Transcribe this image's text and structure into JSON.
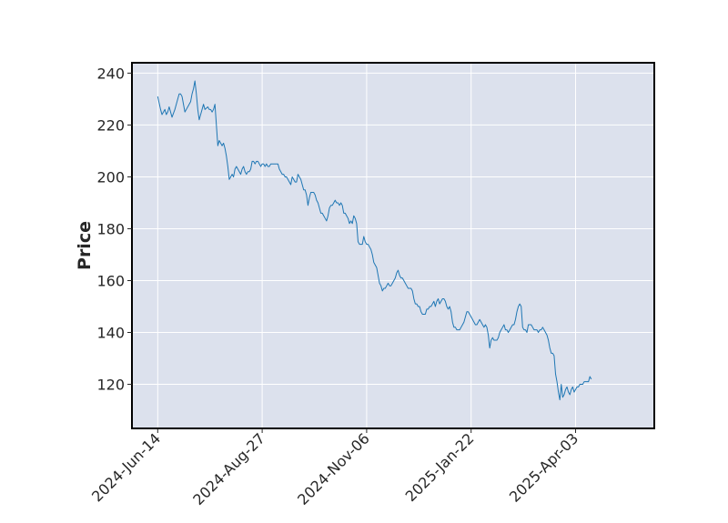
{
  "chart_data": {
    "type": "line",
    "title": "",
    "xlabel": "",
    "ylabel": "Price",
    "ylim": [
      103,
      244
    ],
    "yticks": [
      120,
      140,
      160,
      180,
      200,
      220,
      240
    ],
    "xticks": [
      "2024-Jun-14",
      "2024-Aug-27",
      "2024-Nov-06",
      "2025-Jan-22",
      "2025-Apr-03"
    ],
    "grid": true,
    "background_color": "#dce1ed",
    "line_color": "#1f77b4",
    "x_range": [
      -18,
      347
    ],
    "series": [
      {
        "points": [
          [
            0,
            231
          ],
          [
            2,
            226
          ],
          [
            3,
            224
          ],
          [
            5,
            226
          ],
          [
            6,
            224
          ],
          [
            7,
            225
          ],
          [
            8,
            227
          ],
          [
            9,
            225
          ],
          [
            10,
            223
          ],
          [
            12,
            226
          ],
          [
            14,
            230
          ],
          [
            15,
            232
          ],
          [
            16,
            232
          ],
          [
            17,
            231
          ],
          [
            18,
            228
          ],
          [
            19,
            225
          ],
          [
            20,
            226
          ],
          [
            21,
            227
          ],
          [
            23,
            229
          ],
          [
            24,
            232
          ],
          [
            25,
            234
          ],
          [
            26,
            237
          ],
          [
            27,
            232
          ],
          [
            28,
            226
          ],
          [
            29,
            222
          ],
          [
            30,
            224
          ],
          [
            31,
            226
          ],
          [
            32,
            228
          ],
          [
            33,
            226
          ],
          [
            35,
            227
          ],
          [
            36,
            226
          ],
          [
            37,
            226
          ],
          [
            38,
            225
          ],
          [
            39,
            226
          ],
          [
            40,
            228
          ],
          [
            41,
            220
          ],
          [
            42,
            212
          ],
          [
            43,
            214
          ],
          [
            44,
            213
          ],
          [
            45,
            212
          ],
          [
            46,
            213
          ],
          [
            47,
            211
          ],
          [
            48,
            208
          ],
          [
            49,
            204
          ],
          [
            50,
            199
          ],
          [
            51,
            200
          ],
          [
            52,
            201
          ],
          [
            53,
            200
          ],
          [
            54,
            203
          ],
          [
            55,
            204
          ],
          [
            56,
            203
          ],
          [
            57,
            202
          ],
          [
            58,
            201
          ],
          [
            59,
            203
          ],
          [
            60,
            204
          ],
          [
            61,
            202
          ],
          [
            62,
            201
          ],
          [
            63,
            202
          ],
          [
            64,
            202
          ],
          [
            65,
            203
          ],
          [
            66,
            206
          ],
          [
            67,
            206
          ],
          [
            68,
            205
          ],
          [
            69,
            206
          ],
          [
            70,
            206
          ],
          [
            71,
            205
          ],
          [
            72,
            204
          ],
          [
            73,
            205
          ],
          [
            74,
            205
          ],
          [
            75,
            204
          ],
          [
            76,
            205
          ],
          [
            77,
            204
          ],
          [
            78,
            204
          ],
          [
            79,
            205
          ],
          [
            80,
            205
          ],
          [
            82,
            205
          ],
          [
            84,
            205
          ],
          [
            85,
            203
          ],
          [
            86,
            202
          ],
          [
            87,
            201
          ],
          [
            88,
            201
          ],
          [
            89,
            200
          ],
          [
            90,
            200
          ],
          [
            91,
            199
          ],
          [
            92,
            198
          ],
          [
            93,
            197
          ],
          [
            94,
            200
          ],
          [
            95,
            199
          ],
          [
            96,
            198
          ],
          [
            97,
            198
          ],
          [
            98,
            201
          ],
          [
            99,
            200
          ],
          [
            100,
            199
          ],
          [
            101,
            197
          ],
          [
            102,
            195
          ],
          [
            103,
            195
          ],
          [
            104,
            193
          ],
          [
            105,
            189
          ],
          [
            106,
            192
          ],
          [
            107,
            194
          ],
          [
            108,
            194
          ],
          [
            109,
            194
          ],
          [
            110,
            193
          ],
          [
            111,
            191
          ],
          [
            112,
            190
          ],
          [
            113,
            188
          ],
          [
            114,
            186
          ],
          [
            115,
            186
          ],
          [
            116,
            185
          ],
          [
            117,
            184
          ],
          [
            118,
            183
          ],
          [
            119,
            185
          ],
          [
            120,
            188
          ],
          [
            121,
            189
          ],
          [
            122,
            189
          ],
          [
            123,
            190
          ],
          [
            124,
            191
          ],
          [
            125,
            190
          ],
          [
            126,
            190
          ],
          [
            127,
            189
          ],
          [
            128,
            190
          ],
          [
            129,
            189
          ],
          [
            130,
            186
          ],
          [
            131,
            186
          ],
          [
            132,
            185
          ],
          [
            133,
            184
          ],
          [
            134,
            182
          ],
          [
            135,
            183
          ],
          [
            136,
            182
          ],
          [
            137,
            185
          ],
          [
            138,
            184
          ],
          [
            139,
            182
          ],
          [
            140,
            175
          ],
          [
            141,
            174
          ],
          [
            142,
            174
          ],
          [
            143,
            174
          ],
          [
            144,
            177
          ],
          [
            145,
            175
          ],
          [
            146,
            174
          ],
          [
            147,
            174
          ],
          [
            148,
            173
          ],
          [
            149,
            172
          ],
          [
            150,
            170
          ],
          [
            151,
            167
          ],
          [
            152,
            166
          ],
          [
            153,
            165
          ],
          [
            154,
            162
          ],
          [
            155,
            159
          ],
          [
            156,
            158
          ],
          [
            157,
            156
          ],
          [
            158,
            157
          ],
          [
            159,
            157
          ],
          [
            160,
            158
          ],
          [
            161,
            159
          ],
          [
            162,
            158
          ],
          [
            163,
            158
          ],
          [
            164,
            159
          ],
          [
            165,
            160
          ],
          [
            166,
            161
          ],
          [
            167,
            163
          ],
          [
            168,
            164
          ],
          [
            169,
            162
          ],
          [
            170,
            161
          ],
          [
            171,
            161
          ],
          [
            172,
            160
          ],
          [
            173,
            159
          ],
          [
            174,
            158
          ],
          [
            175,
            157
          ],
          [
            176,
            157
          ],
          [
            177,
            157
          ],
          [
            178,
            156
          ],
          [
            179,
            153
          ],
          [
            180,
            151
          ],
          [
            181,
            151
          ],
          [
            182,
            150
          ],
          [
            183,
            150
          ],
          [
            184,
            148
          ],
          [
            185,
            147
          ],
          [
            186,
            147
          ],
          [
            187,
            147
          ],
          [
            188,
            149
          ],
          [
            189,
            149
          ],
          [
            190,
            150
          ],
          [
            191,
            150
          ],
          [
            192,
            151
          ],
          [
            193,
            152
          ],
          [
            194,
            150
          ],
          [
            195,
            152
          ],
          [
            196,
            153
          ],
          [
            197,
            151
          ],
          [
            198,
            152
          ],
          [
            199,
            153
          ],
          [
            200,
            153
          ],
          [
            201,
            152
          ],
          [
            202,
            150
          ],
          [
            203,
            149
          ],
          [
            204,
            150
          ],
          [
            205,
            148
          ],
          [
            206,
            144
          ],
          [
            207,
            142
          ],
          [
            208,
            142
          ],
          [
            209,
            141
          ],
          [
            210,
            141
          ],
          [
            211,
            141
          ],
          [
            212,
            142
          ],
          [
            213,
            143
          ],
          [
            214,
            144
          ],
          [
            215,
            146
          ],
          [
            216,
            148
          ],
          [
            217,
            148
          ],
          [
            218,
            147
          ],
          [
            219,
            146
          ],
          [
            220,
            145
          ],
          [
            221,
            144
          ],
          [
            222,
            143
          ],
          [
            223,
            143
          ],
          [
            224,
            144
          ],
          [
            225,
            145
          ],
          [
            226,
            144
          ],
          [
            227,
            143
          ],
          [
            228,
            142
          ],
          [
            229,
            143
          ],
          [
            230,
            142
          ],
          [
            231,
            139
          ],
          [
            232,
            134
          ],
          [
            233,
            137
          ],
          [
            234,
            138
          ],
          [
            235,
            137
          ],
          [
            236,
            137
          ],
          [
            237,
            137
          ],
          [
            238,
            138
          ],
          [
            239,
            140
          ],
          [
            240,
            141
          ],
          [
            241,
            142
          ],
          [
            242,
            143
          ],
          [
            243,
            141
          ],
          [
            244,
            141
          ],
          [
            245,
            140
          ],
          [
            246,
            141
          ],
          [
            247,
            142
          ],
          [
            248,
            143
          ],
          [
            249,
            143
          ],
          [
            250,
            145
          ],
          [
            251,
            148
          ],
          [
            252,
            150
          ],
          [
            253,
            151
          ],
          [
            254,
            150
          ],
          [
            255,
            142
          ],
          [
            256,
            141
          ],
          [
            257,
            141
          ],
          [
            258,
            140
          ],
          [
            259,
            143
          ],
          [
            260,
            143
          ],
          [
            261,
            143
          ],
          [
            262,
            142
          ],
          [
            263,
            141
          ],
          [
            264,
            141
          ],
          [
            265,
            141
          ],
          [
            266,
            140
          ],
          [
            267,
            141
          ],
          [
            268,
            141
          ],
          [
            269,
            142
          ],
          [
            270,
            141
          ],
          [
            271,
            140
          ],
          [
            272,
            139
          ],
          [
            273,
            137
          ],
          [
            274,
            134
          ],
          [
            275,
            132
          ],
          [
            276,
            132
          ],
          [
            277,
            131
          ],
          [
            278,
            124
          ],
          [
            279,
            121
          ],
          [
            280,
            117
          ],
          [
            281,
            114
          ],
          [
            282,
            120
          ],
          [
            283,
            115
          ],
          [
            284,
            116
          ],
          [
            285,
            118
          ],
          [
            286,
            119
          ],
          [
            287,
            117
          ],
          [
            288,
            116
          ],
          [
            289,
            118
          ],
          [
            290,
            119
          ],
          [
            291,
            117
          ],
          [
            292,
            118
          ],
          [
            293,
            119
          ],
          [
            294,
            119
          ],
          [
            295,
            120
          ],
          [
            296,
            120
          ],
          [
            297,
            120
          ],
          [
            298,
            121
          ],
          [
            299,
            121
          ],
          [
            300,
            121
          ],
          [
            301,
            121
          ],
          [
            302,
            123
          ],
          [
            303,
            122
          ]
        ]
      }
    ]
  }
}
